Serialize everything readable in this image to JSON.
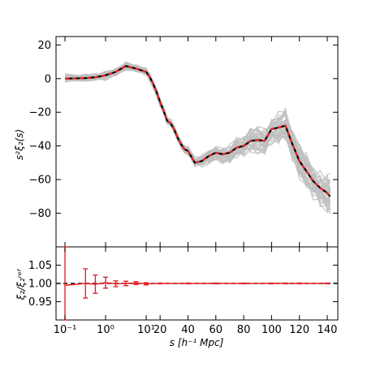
{
  "chart_data": [
    {
      "type": "line",
      "panel": "top",
      "ylabel": "s²ξ₂(s)",
      "ylim": [
        -100,
        25
      ],
      "yticks": [
        20,
        0,
        -20,
        -40,
        -60,
        -80
      ],
      "yticklabels": [
        "20",
        "0",
        "−20",
        "−40",
        "−60",
        "−80"
      ],
      "grid": false,
      "colors": {
        "mocks": "#c0c0c0",
        "mean": "#000000",
        "model": "#e8232a"
      },
      "x": [
        0.1,
        0.32,
        0.56,
        1.0,
        1.78,
        3.16,
        5.6,
        10,
        12.5,
        15,
        17.5,
        20,
        22.5,
        25,
        27.5,
        30,
        32.5,
        35,
        37.5,
        40,
        45,
        50,
        55,
        60,
        65,
        70,
        75,
        80,
        85,
        90,
        95,
        100,
        105,
        110,
        115,
        120,
        125,
        130,
        135,
        140,
        142
      ],
      "series": [
        {
          "values": [
            0,
            0.3,
            0.8,
            2.0,
            4.0,
            7.5,
            6.0,
            4.0,
            1.0,
            -3.0,
            -8.0,
            -14.0,
            -19.0,
            -25.0,
            -26.5,
            -30.0,
            -35.0,
            -39.0,
            -42.0,
            -43.0,
            -50.0,
            -49.0,
            -46.0,
            -44.0,
            -45.0,
            -44.0,
            -41.0,
            -40.0,
            -37.0,
            -36.5,
            -37.0,
            -30.0,
            -29.0,
            -28.0,
            -39.0,
            -49.0,
            -55.0,
            -61.0,
            -65.0,
            -68.0,
            -70.0
          ]
        }
      ]
    },
    {
      "type": "line",
      "panel": "bottom",
      "ylabel": "ξ₂/ξ₂ʳᵉᶠ",
      "ylim": [
        0.9,
        1.1
      ],
      "yticks": [
        1.05,
        1.0,
        0.95
      ],
      "yticklabels": [
        "1.05",
        "1.00",
        "0.95"
      ],
      "xticklabels": [
        "10⁻¹",
        "10⁰",
        "10¹",
        "20",
        "40",
        "60",
        "80",
        "100",
        "120",
        "140"
      ],
      "xlabel": "s [h⁻¹ Mpc]",
      "series": [
        {
          "x": [
            0.1,
            0.32,
            0.56,
            1.0,
            1.78,
            3.16,
            5.6,
            10,
            20,
            40,
            60,
            80,
            100,
            110,
            120,
            140
          ],
          "values": [
            0.995,
            1.0,
            0.998,
            1.002,
            0.999,
            1.0,
            1.001,
            0.999,
            1.0,
            1.0,
            1.0,
            1.0,
            1.0,
            1.0,
            1.0,
            1.0
          ],
          "errors": [
            0.2,
            0.04,
            0.025,
            0.015,
            0.008,
            0.006,
            0.004,
            0.003,
            0.001,
            0.001,
            0.001,
            0.001,
            0.001,
            0.001,
            0.001,
            0.001
          ]
        }
      ]
    }
  ]
}
